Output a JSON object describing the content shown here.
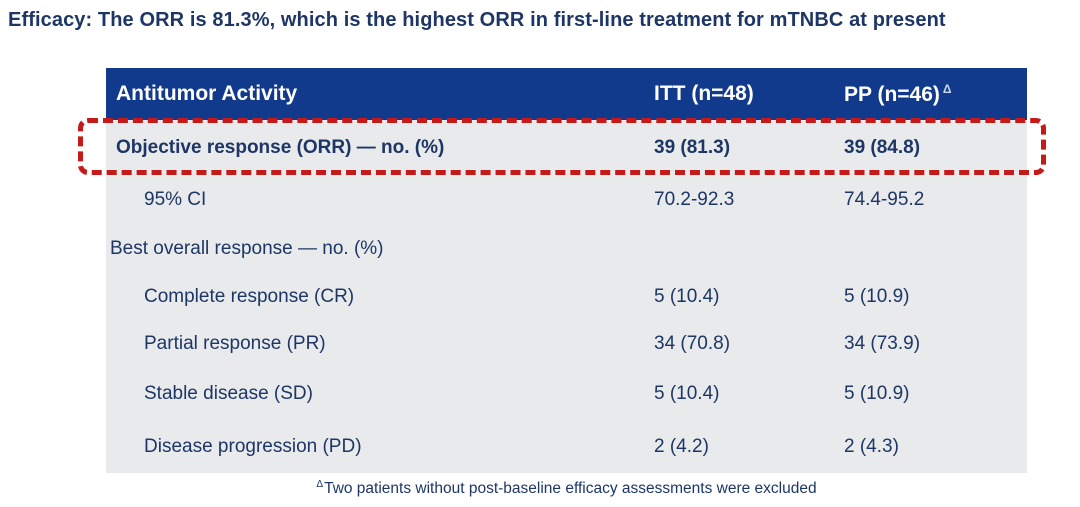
{
  "title": "Efficacy: The ORR is 81.3%, which is the highest ORR in first-line treatment for mTNBC at present",
  "colors": {
    "header_bg": "#113a8c",
    "header_text": "#ffffff",
    "table_body_bg": "#e8eaeb",
    "text_navy": "#1e3666",
    "highlight_red": "#c41a1a",
    "page_bg": "#ffffff"
  },
  "table": {
    "header": {
      "activity": "Antitumor Activity",
      "itt": "ITT (n=48)",
      "pp": "PP (n=46)",
      "pp_superscript": "Δ"
    },
    "rows": [
      {
        "label": "Objective response (ORR) — no. (%)",
        "itt": "39 (81.3)",
        "pp": "39 (84.8)"
      },
      {
        "label": "95% CI",
        "itt": "70.2-92.3",
        "pp": "74.4-95.2"
      },
      {
        "label": "Best overall response — no. (%)",
        "itt": "",
        "pp": ""
      },
      {
        "label": "Complete response (CR)",
        "itt": "5 (10.4)",
        "pp": "5 (10.9)"
      },
      {
        "label": "Partial response (PR)",
        "itt": "34 (70.8)",
        "pp": "34 (73.9)"
      },
      {
        "label": "Stable disease (SD)",
        "itt": "5 (10.4)",
        "pp": "5 (10.9)"
      },
      {
        "label": "Disease progression (PD)",
        "itt": "2 (4.2)",
        "pp": "2 (4.3)"
      }
    ]
  },
  "footnote": {
    "superscript": "Δ",
    "text": "Two patients without post-baseline efficacy assessments were excluded"
  }
}
